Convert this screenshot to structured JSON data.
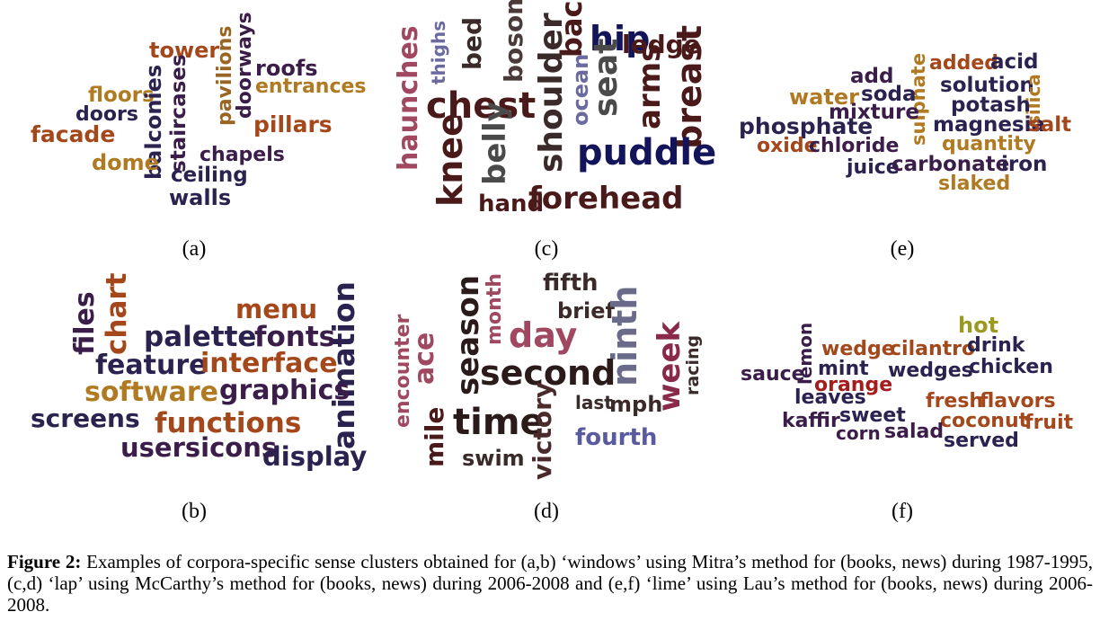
{
  "panels": [
    {
      "label": "(a)",
      "words": [
        {
          "text": "tower",
          "color": "#a4481c"
        },
        {
          "text": "pavilions",
          "color": "#9a6422"
        },
        {
          "text": "doorways",
          "color": "#3b1d4a"
        },
        {
          "text": "roofs",
          "color": "#3b1d4a"
        },
        {
          "text": "entrances",
          "color": "#b07a22"
        },
        {
          "text": "floors",
          "color": "#b07a22"
        },
        {
          "text": "staircases",
          "color": "#3b1d4a"
        },
        {
          "text": "balconies",
          "color": "#2b2250"
        },
        {
          "text": "doors",
          "color": "#2b2250"
        },
        {
          "text": "pillars",
          "color": "#a4481c"
        },
        {
          "text": "facade",
          "color": "#a4481c"
        },
        {
          "text": "chapels",
          "color": "#3b1d4a"
        },
        {
          "text": "dome",
          "color": "#b07a22"
        },
        {
          "text": "ceiling",
          "color": "#2b2250"
        },
        {
          "text": "walls",
          "color": "#2b2250"
        }
      ]
    },
    {
      "label": "(b)",
      "words": [
        {
          "text": "files",
          "color": "#3b1d4a"
        },
        {
          "text": "chart",
          "color": "#a4481c"
        },
        {
          "text": "menu",
          "color": "#a4481c"
        },
        {
          "text": "palette",
          "color": "#2b2250"
        },
        {
          "text": "fonts",
          "color": "#3b1d4a"
        },
        {
          "text": "animation",
          "color": "#2b2250"
        },
        {
          "text": "feature",
          "color": "#2b2250"
        },
        {
          "text": "interface",
          "color": "#a4481c"
        },
        {
          "text": "software",
          "color": "#b07a22"
        },
        {
          "text": "graphics",
          "color": "#3b1d4a"
        },
        {
          "text": "screens",
          "color": "#2b2250"
        },
        {
          "text": "functions",
          "color": "#a4481c"
        },
        {
          "text": "usersicons",
          "color": "#3b1d4a"
        },
        {
          "text": "display",
          "color": "#2b2250"
        }
      ]
    },
    {
      "label": "(c)",
      "words": [
        {
          "text": "thighs",
          "color": "#6a6aa0"
        },
        {
          "text": "bed",
          "color": "#3b2a2a"
        },
        {
          "text": "bosom",
          "color": "#4a3a3a"
        },
        {
          "text": "back",
          "color": "#4a1a1a"
        },
        {
          "text": "hip",
          "color": "#14145a"
        },
        {
          "text": "ledge",
          "color": "#4a1a1a"
        },
        {
          "text": "haunches",
          "color": "#a04860"
        },
        {
          "text": "chest",
          "color": "#4a1a1a"
        },
        {
          "text": "shoulder",
          "color": "#3b2a2a"
        },
        {
          "text": "ocean",
          "color": "#6a6aa0"
        },
        {
          "text": "seat",
          "color": "#4a4a4a"
        },
        {
          "text": "arms",
          "color": "#4a1a1a"
        },
        {
          "text": "breast",
          "color": "#4a1a1a"
        },
        {
          "text": "knee",
          "color": "#4a1a1a"
        },
        {
          "text": "belly",
          "color": "#4a4a4a"
        },
        {
          "text": "puddle",
          "color": "#14145a"
        },
        {
          "text": "hand",
          "color": "#4a1a1a"
        },
        {
          "text": "forehead",
          "color": "#4a1a1a"
        }
      ]
    },
    {
      "label": "(d)",
      "words": [
        {
          "text": "fifth",
          "color": "#3b2a2a"
        },
        {
          "text": "season",
          "color": "#2a1a1a"
        },
        {
          "text": "month",
          "color": "#a04860"
        },
        {
          "text": "brief",
          "color": "#3b2a2a"
        },
        {
          "text": "day",
          "color": "#a04860"
        },
        {
          "text": "ninth",
          "color": "#6a6a8a"
        },
        {
          "text": "encounter",
          "color": "#a04860"
        },
        {
          "text": "ace",
          "color": "#a04860"
        },
        {
          "text": "week",
          "color": "#8a2a4a"
        },
        {
          "text": "racing",
          "color": "#3b2a2a"
        },
        {
          "text": "second",
          "color": "#2a1a1a"
        },
        {
          "text": "last",
          "color": "#3b2a2a"
        },
        {
          "text": "mph",
          "color": "#3b2a2a"
        },
        {
          "text": "time",
          "color": "#2a1a1a"
        },
        {
          "text": "mile",
          "color": "#4a1a1a"
        },
        {
          "text": "victory",
          "color": "#4a2a2a"
        },
        {
          "text": "fourth",
          "color": "#5a5aa0"
        },
        {
          "text": "swim",
          "color": "#3b2a2a"
        }
      ]
    },
    {
      "label": "(e)",
      "words": [
        {
          "text": "add",
          "color": "#3b1d4a"
        },
        {
          "text": "sulphate",
          "color": "#b07a22"
        },
        {
          "text": "added",
          "color": "#a4481c"
        },
        {
          "text": "acid",
          "color": "#2b2250"
        },
        {
          "text": "water",
          "color": "#b07a22"
        },
        {
          "text": "soda",
          "color": "#2b2250"
        },
        {
          "text": "solution",
          "color": "#2b2250"
        },
        {
          "text": "silica",
          "color": "#b07a22"
        },
        {
          "text": "mixture",
          "color": "#3b1d4a"
        },
        {
          "text": "potash",
          "color": "#2b2250"
        },
        {
          "text": "phosphate",
          "color": "#2b2250"
        },
        {
          "text": "magnesia",
          "color": "#2b2250"
        },
        {
          "text": "salt",
          "color": "#a4481c"
        },
        {
          "text": "oxide",
          "color": "#a4481c"
        },
        {
          "text": "chloride",
          "color": "#3b1d4a"
        },
        {
          "text": "quantity",
          "color": "#b07a22"
        },
        {
          "text": "juice",
          "color": "#2b2250"
        },
        {
          "text": "carbonate",
          "color": "#3b1d4a"
        },
        {
          "text": "iron",
          "color": "#2b2250"
        },
        {
          "text": "slaked",
          "color": "#b07a22"
        }
      ]
    },
    {
      "label": "(f)",
      "words": [
        {
          "text": "hot",
          "color": "#9a9a20"
        },
        {
          "text": "lemon",
          "color": "#3b1d4a"
        },
        {
          "text": "wedge",
          "color": "#a4481c"
        },
        {
          "text": "cilantro",
          "color": "#a4481c"
        },
        {
          "text": "drink",
          "color": "#2b2250"
        },
        {
          "text": "sauce",
          "color": "#3b1d4a"
        },
        {
          "text": "mint",
          "color": "#2b2250"
        },
        {
          "text": "wedges",
          "color": "#2b2250"
        },
        {
          "text": "chicken",
          "color": "#2b2250"
        },
        {
          "text": "orange",
          "color": "#a41c1c"
        },
        {
          "text": "leaves",
          "color": "#2b2250"
        },
        {
          "text": "fresh",
          "color": "#a4481c"
        },
        {
          "text": "flavors",
          "color": "#a4481c"
        },
        {
          "text": "kaffir",
          "color": "#3b1d4a"
        },
        {
          "text": "sweet",
          "color": "#2b2250"
        },
        {
          "text": "coconut",
          "color": "#a4481c"
        },
        {
          "text": "fruit",
          "color": "#a4481c"
        },
        {
          "text": "corn",
          "color": "#3b1d4a"
        },
        {
          "text": "salad",
          "color": "#3b1d4a"
        },
        {
          "text": "served",
          "color": "#2b2250"
        }
      ]
    }
  ],
  "caption": {
    "label": "Figure 2:",
    "text": " Examples of corpora-specific sense clusters obtained for (a,b) ‘windows’ using Mitra’s method for (books, news) during 1987-1995, (c,d) ‘lap’ using McCarthy’s method for (books, news) during 2006-2008 and (e,f) ‘lime’ using Lau’s method for (books, news) during 2006-2008."
  }
}
